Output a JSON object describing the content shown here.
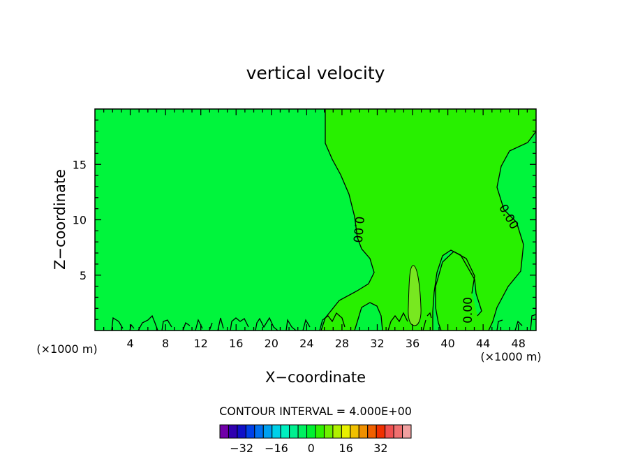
{
  "chart_data": {
    "type": "contour",
    "title": "vertical velocity",
    "xlabel": "X−coordinate",
    "ylabel": "Z−coordinate",
    "x_unit_left": "(×1000 m)",
    "x_unit_right": "(×1000 m)",
    "xlim": [
      0,
      50
    ],
    "ylim": [
      0,
      20
    ],
    "x_ticks": [
      4,
      8,
      12,
      16,
      20,
      24,
      28,
      32,
      36,
      40,
      44,
      48
    ],
    "y_ticks": [
      5,
      10,
      15
    ],
    "contour_labels": [
      "0.00",
      "0.00",
      "0.00"
    ],
    "contour_interval_text": "CONTOUR INTERVAL = 4.000E+00",
    "colorbar": {
      "colors": [
        "#7000a8",
        "#3000b0",
        "#1010c8",
        "#0040e8",
        "#0070f0",
        "#00a0f0",
        "#00d0e8",
        "#00f0c0",
        "#00f090",
        "#00f060",
        "#00f030",
        "#30f000",
        "#70f000",
        "#b0f000",
        "#e8f000",
        "#f0c000",
        "#f09000",
        "#f06000",
        "#f03000",
        "#f05050",
        "#f07070",
        "#f0a0a0"
      ],
      "tick_labels": [
        "−32",
        "−16",
        "0",
        "16",
        "32"
      ],
      "tick_values": [
        -32,
        -16,
        0,
        16,
        32
      ]
    },
    "colors": {
      "background_field": "#00f53c",
      "positive_field": "#28f000",
      "strong_positive_core": "#78e820"
    }
  }
}
